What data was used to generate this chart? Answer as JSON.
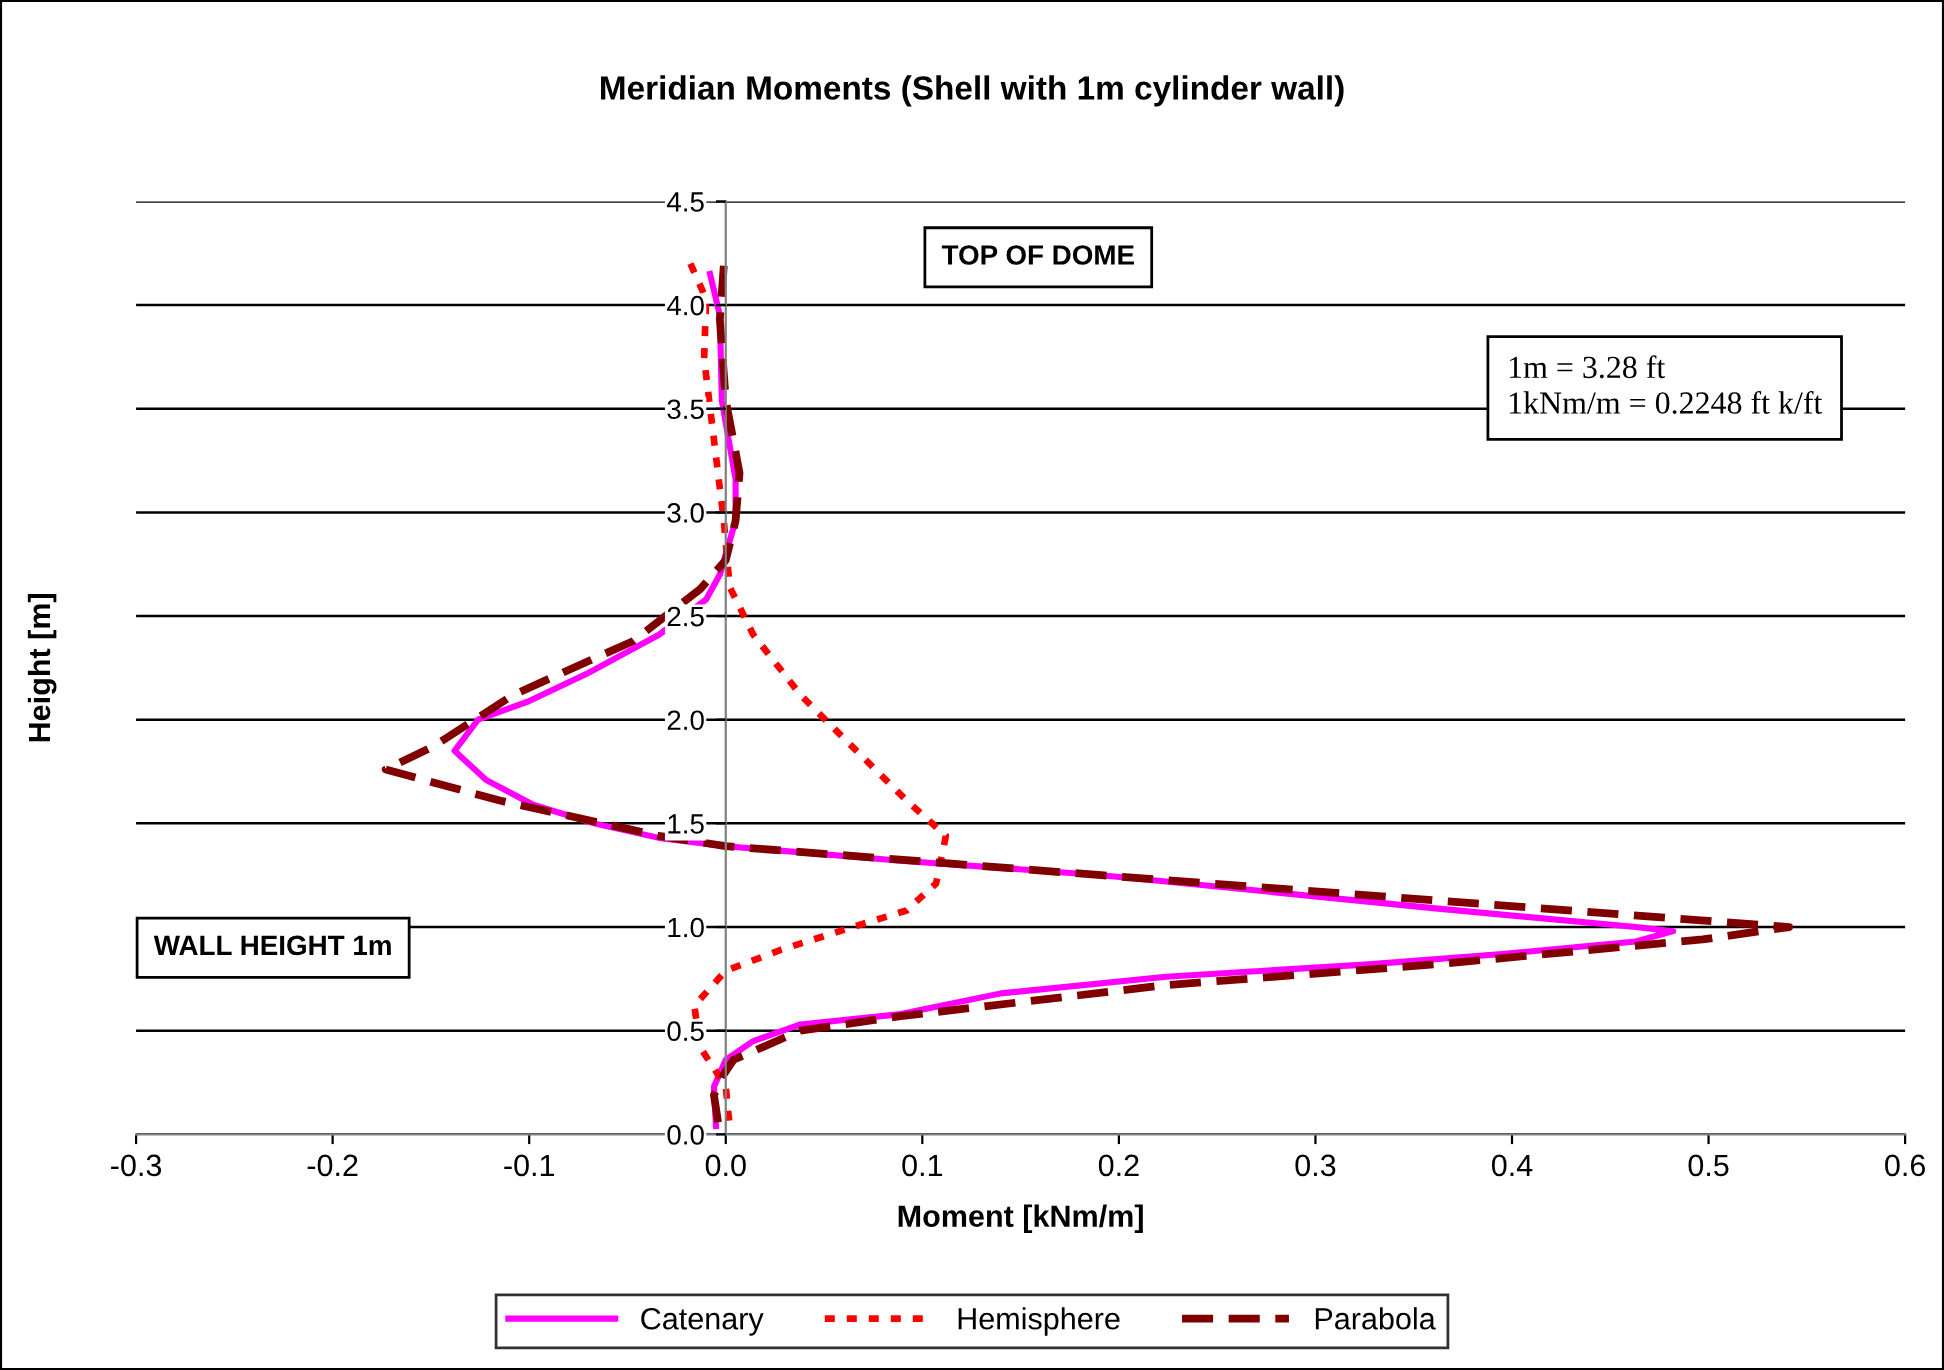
{
  "chart_data": {
    "type": "line",
    "title": "Meridian Moments (Shell with 1m cylinder wall)",
    "xlabel": "Moment [kNm/m]",
    "ylabel": "Height [m]",
    "xlim": [
      -0.3,
      0.6
    ],
    "xticks": [
      -0.3,
      -0.2,
      -0.1,
      {
        "value": 0,
        "label": "0.0"
      },
      0.1,
      0.2,
      0.3,
      0.4,
      0.5,
      0.6
    ],
    "ylim": [
      0.0,
      4.5
    ],
    "yticks": [
      {
        "value": 0,
        "label": "0.0"
      },
      {
        "value": 0.5,
        "label": "0.5"
      },
      {
        "value": 1,
        "label": "1.0"
      },
      {
        "value": 1.5,
        "label": "1.5"
      },
      {
        "value": 2,
        "label": "2.0"
      },
      {
        "value": 2.5,
        "label": "2.5"
      },
      {
        "value": 3,
        "label": "3.0"
      },
      {
        "value": 3.5,
        "label": "3.5"
      },
      {
        "value": 4,
        "label": "4.0"
      },
      {
        "value": 4.5,
        "label": "4.5"
      }
    ],
    "grid": "y",
    "legend": "bottom",
    "marker": "none",
    "annotations": [
      "TOP OF DOME",
      "1m = 3.28 ft\n1kNm/m = 0.2248 ft k/ft",
      "WALL HEIGHT 1m"
    ],
    "series": [
      {
        "name": "Catenary",
        "color": "#ff00ff",
        "line_style": "solid",
        "x": [
          -0.008,
          -0.003,
          -0.002,
          0.005,
          0.005,
          -0.003,
          -0.01,
          -0.034,
          -0.071,
          -0.1,
          -0.126,
          -0.138,
          -0.122,
          -0.098,
          -0.067,
          -0.034,
          0.0,
          0.089,
          0.191,
          0.224,
          0.361,
          0.463,
          0.482,
          0.463,
          0.395,
          0.327,
          0.224,
          0.14,
          0.089,
          0.038,
          0.014,
          0.0,
          -0.006,
          -0.005
        ],
        "values": [
          4.15,
          3.95,
          3.54,
          3.16,
          2.96,
          2.7,
          2.58,
          2.41,
          2.22,
          2.09,
          2.0,
          1.85,
          1.71,
          1.59,
          1.5,
          1.43,
          1.39,
          1.32,
          1.25,
          1.22,
          1.09,
          1.0,
          0.98,
          0.93,
          0.87,
          0.82,
          0.76,
          0.68,
          0.58,
          0.53,
          0.45,
          0.36,
          0.23,
          0.04
        ]
      },
      {
        "name": "Hemisphere",
        "color": "#ff0000",
        "line_style": "dotted",
        "x": [
          -0.018,
          -0.01,
          -0.011,
          -0.006,
          -0.001,
          0.002,
          0.014,
          0.038,
          0.058,
          0.092,
          0.112,
          0.107,
          0.092,
          0.068,
          0.028,
          0.0,
          -0.016,
          -0.013,
          0.0,
          0.002
        ],
        "values": [
          4.2,
          4.03,
          3.74,
          3.35,
          2.96,
          2.64,
          2.41,
          2.12,
          1.93,
          1.61,
          1.44,
          1.21,
          1.08,
          1.01,
          0.89,
          0.79,
          0.62,
          0.42,
          0.23,
          0.04
        ]
      },
      {
        "name": "Parabola",
        "color": "#800000",
        "line_style": "dashed",
        "x": [
          -0.001,
          -0.003,
          0.0,
          0.007,
          0.005,
          0.0,
          -0.013,
          -0.047,
          -0.108,
          -0.149,
          -0.173,
          -0.115,
          -0.034,
          0.0,
          0.191,
          0.541,
          0.497,
          0.361,
          0.224,
          0.089,
          0.038,
          0.004,
          -0.001,
          -0.006,
          -0.003
        ],
        "values": [
          4.19,
          3.93,
          3.54,
          3.19,
          2.96,
          2.77,
          2.63,
          2.38,
          2.12,
          1.87,
          1.76,
          1.61,
          1.44,
          1.39,
          1.25,
          1.0,
          0.94,
          0.82,
          0.72,
          0.57,
          0.5,
          0.36,
          0.29,
          0.19,
          0.0
        ]
      }
    ]
  }
}
